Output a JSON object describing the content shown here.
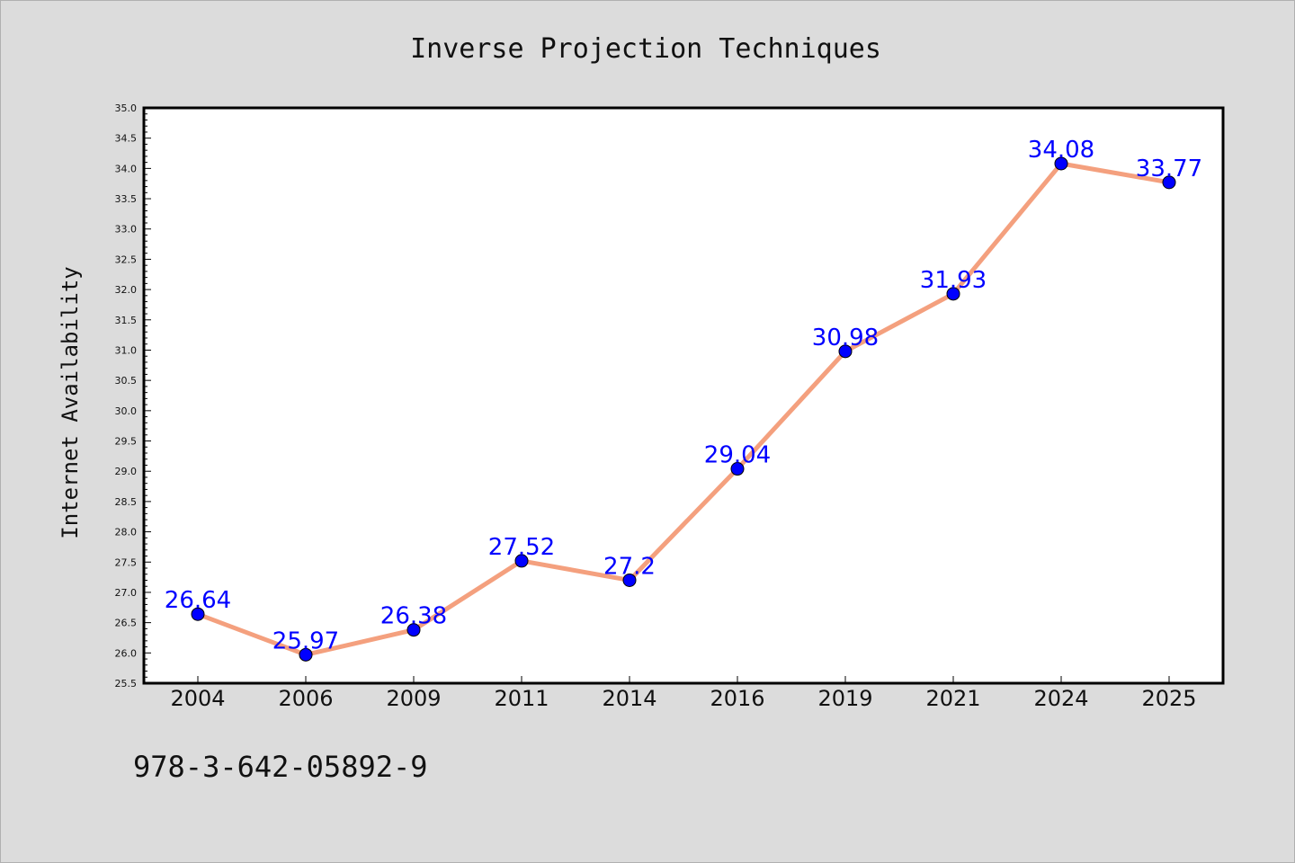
{
  "chart_data": {
    "type": "line",
    "title": "Inverse Projection Techniques",
    "xlabel": "",
    "ylabel": "Internet Availability",
    "categories": [
      "2004",
      "2006",
      "2009",
      "2011",
      "2014",
      "2016",
      "2019",
      "2021",
      "2024",
      "2025"
    ],
    "series": [
      {
        "values": [
          26.64,
          25.97,
          26.38,
          27.52,
          27.2,
          29.04,
          30.98,
          31.93,
          34.08,
          33.77
        ],
        "data_labels": [
          "26.64",
          "25.97",
          "26.38",
          "27.52",
          "27.2",
          "29.04",
          "30.98",
          "31.93",
          "34.08",
          "33.77"
        ]
      }
    ],
    "ylim": [
      25.5,
      35.0
    ],
    "yticks": [
      "25.5",
      "26.0",
      "26.5",
      "27.0",
      "27.5",
      "28.0",
      "28.5",
      "29.0",
      "29.5",
      "30.0",
      "30.5",
      "31.0",
      "31.5",
      "32.0",
      "32.5",
      "33.0",
      "33.5",
      "34.0",
      "34.5",
      "35.0"
    ],
    "grid": false,
    "colors": {
      "line": "#f4a07e",
      "marker": "#0000ff",
      "data_label": "#0000ff",
      "background": "#dcdcdc",
      "plot_background": "#ffffff"
    }
  },
  "footer_text": "978-3-642-05892-9"
}
